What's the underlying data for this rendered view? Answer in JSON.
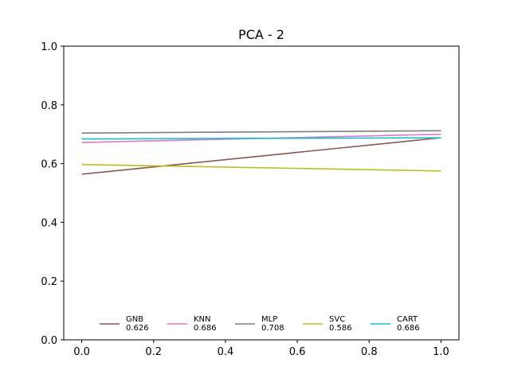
{
  "chart_data": {
    "type": "line",
    "title": "PCA - 2",
    "xlabel": "",
    "ylabel": "",
    "xlim": [
      -0.05,
      1.05
    ],
    "ylim": [
      0.0,
      1.0
    ],
    "x_ticks": [
      0.0,
      0.2,
      0.4,
      0.6,
      0.8,
      1.0
    ],
    "y_ticks": [
      0.0,
      0.2,
      0.4,
      0.6,
      0.8,
      1.0
    ],
    "x_tick_labels": [
      "0.0",
      "0.2",
      "0.4",
      "0.6",
      "0.8",
      "1.0"
    ],
    "y_tick_labels": [
      "0.0",
      "0.2",
      "0.4",
      "0.6",
      "0.8",
      "1.0"
    ],
    "grid": false,
    "legend_position": "lower-center",
    "series": [
      {
        "name": "GNB",
        "score": "0.626",
        "color": "#8c564b",
        "x": [
          0.0,
          1.0
        ],
        "values": [
          0.564,
          0.688
        ]
      },
      {
        "name": "KNN",
        "score": "0.686",
        "color": "#e377c2",
        "x": [
          0.0,
          1.0
        ],
        "values": [
          0.672,
          0.7
        ]
      },
      {
        "name": "MLP",
        "score": "0.708",
        "color": "#7f7f7f",
        "x": [
          0.0,
          1.0
        ],
        "values": [
          0.704,
          0.712
        ]
      },
      {
        "name": "SVC",
        "score": "0.586",
        "color": "#bcbd22",
        "x": [
          0.0,
          1.0
        ],
        "values": [
          0.597,
          0.575
        ]
      },
      {
        "name": "CART",
        "score": "0.686",
        "color": "#17becf",
        "x": [
          0.0,
          1.0
        ],
        "values": [
          0.684,
          0.688
        ]
      }
    ]
  }
}
